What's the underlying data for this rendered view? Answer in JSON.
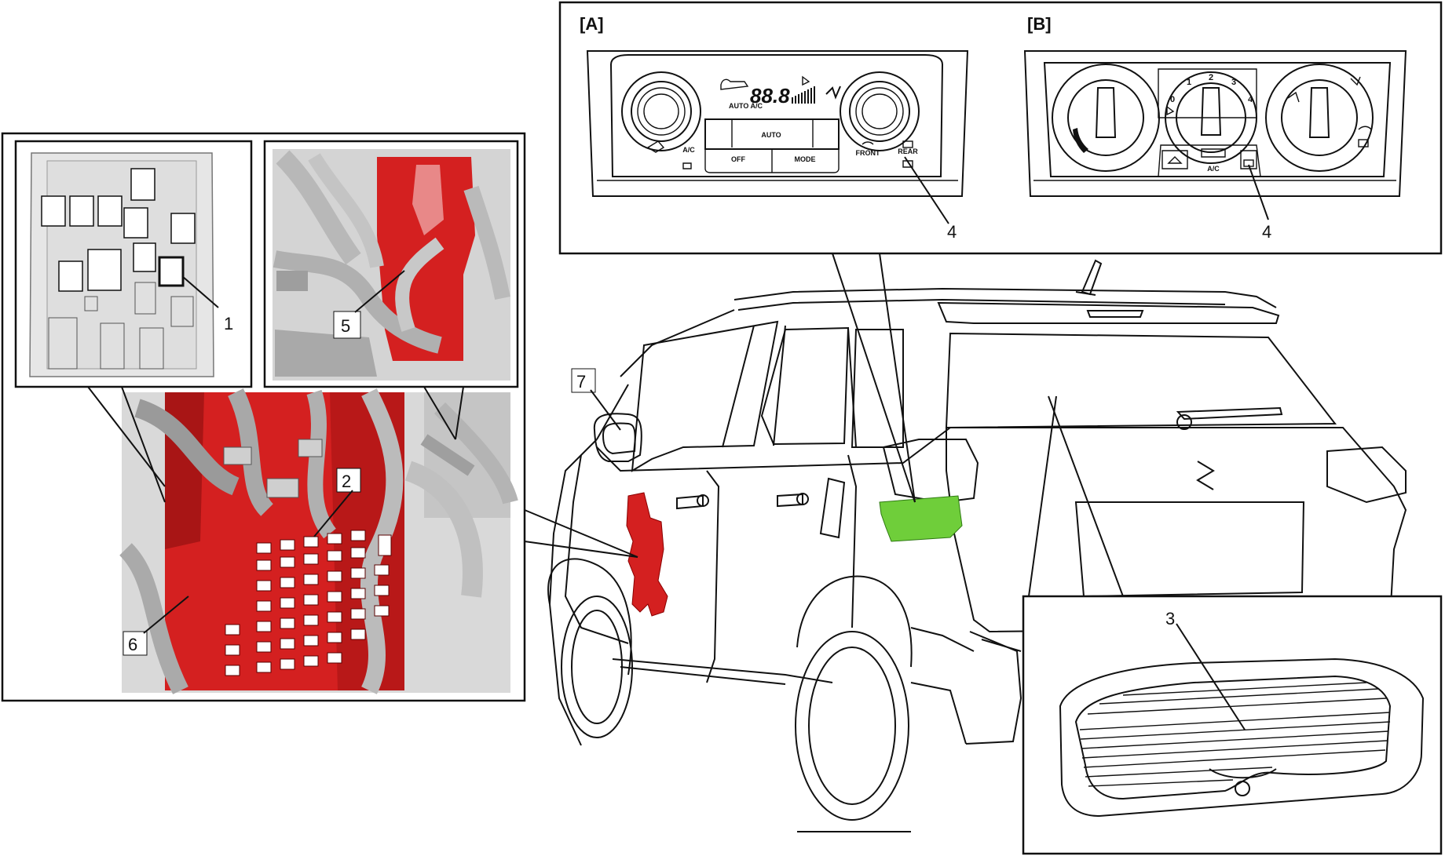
{
  "panels": {
    "a_label": "[A]",
    "b_label": "[B]"
  },
  "auto_ac_panel": {
    "display_digits": "88.8",
    "auto_ac_text": "AUTO A/C",
    "ac_button": "A/C",
    "auto_button": "AUTO",
    "off_button": "OFF",
    "mode_button": "MODE",
    "front_button": "FRONT",
    "rear_button": "REAR"
  },
  "manual_panel": {
    "fan_speeds": [
      "0",
      "1",
      "2",
      "3",
      "4"
    ],
    "ac_button": "A/C"
  },
  "callouts": {
    "c1": "1",
    "c2": "2",
    "c3": "3",
    "c4a": "4",
    "c4b": "4",
    "c5": "5",
    "c6": "6",
    "c7": "7"
  },
  "colors": {
    "highlight_red": "#d42020",
    "highlight_green": "#6fce3a",
    "line": "#111111",
    "render_gray": "#c9c9c9"
  }
}
